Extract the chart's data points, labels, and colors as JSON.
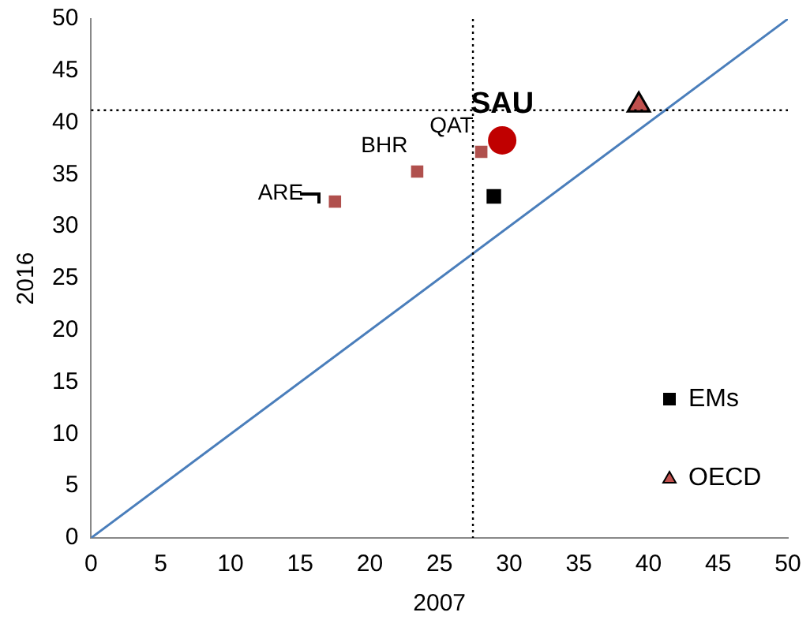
{
  "chart_data": {
    "type": "scatter",
    "xlabel": "2007",
    "ylabel": "2016",
    "xlim": [
      0,
      50
    ],
    "ylim": [
      0,
      50
    ],
    "xticks": [
      0,
      5,
      10,
      15,
      20,
      25,
      30,
      35,
      40,
      45,
      50
    ],
    "yticks": [
      0,
      5,
      10,
      15,
      20,
      25,
      30,
      35,
      40,
      45,
      50
    ],
    "grid": false,
    "legend": "bottom right",
    "series": [
      {
        "type": "line",
        "color": "#4a7ebb",
        "x": [
          0,
          50
        ],
        "values": [
          0,
          50
        ],
        "marker": "none",
        "line_style": "solid"
      },
      {
        "type": "scatter",
        "color": "#b0504d",
        "x": [
          17.5,
          23.4,
          28.0
        ],
        "values": [
          32.4,
          35.3,
          37.2
        ],
        "marker": "square"
      },
      {
        "type": "scatter",
        "color": "#c00000",
        "x": [
          29.5
        ],
        "values": [
          38.3
        ],
        "marker": "circle"
      },
      {
        "type": "scatter",
        "name": "EMs",
        "color": "#000000",
        "x": [
          28.9
        ],
        "values": [
          32.9
        ],
        "marker": "square"
      },
      {
        "type": "scatter",
        "name": "OECD",
        "color": "#c0504d",
        "x": [
          39.3
        ],
        "values": [
          41.7
        ],
        "marker": "triangle"
      }
    ],
    "ref_lines": [
      {
        "axis": "x",
        "value": 27.4,
        "color": "#000000",
        "line_style": "dotted"
      },
      {
        "axis": "y",
        "value": 41.2,
        "color": "#000000",
        "line_style": "dotted"
      }
    ],
    "annotations": [
      {
        "text": "ARE",
        "x": 17.5,
        "y": 32.4
      },
      {
        "text": "BHR",
        "x": 23.4,
        "y": 35.3
      },
      {
        "text": "QAT",
        "x": 28.0,
        "y": 37.2
      },
      {
        "text": "SAU",
        "x": 29.5,
        "y": 38.3
      }
    ]
  }
}
